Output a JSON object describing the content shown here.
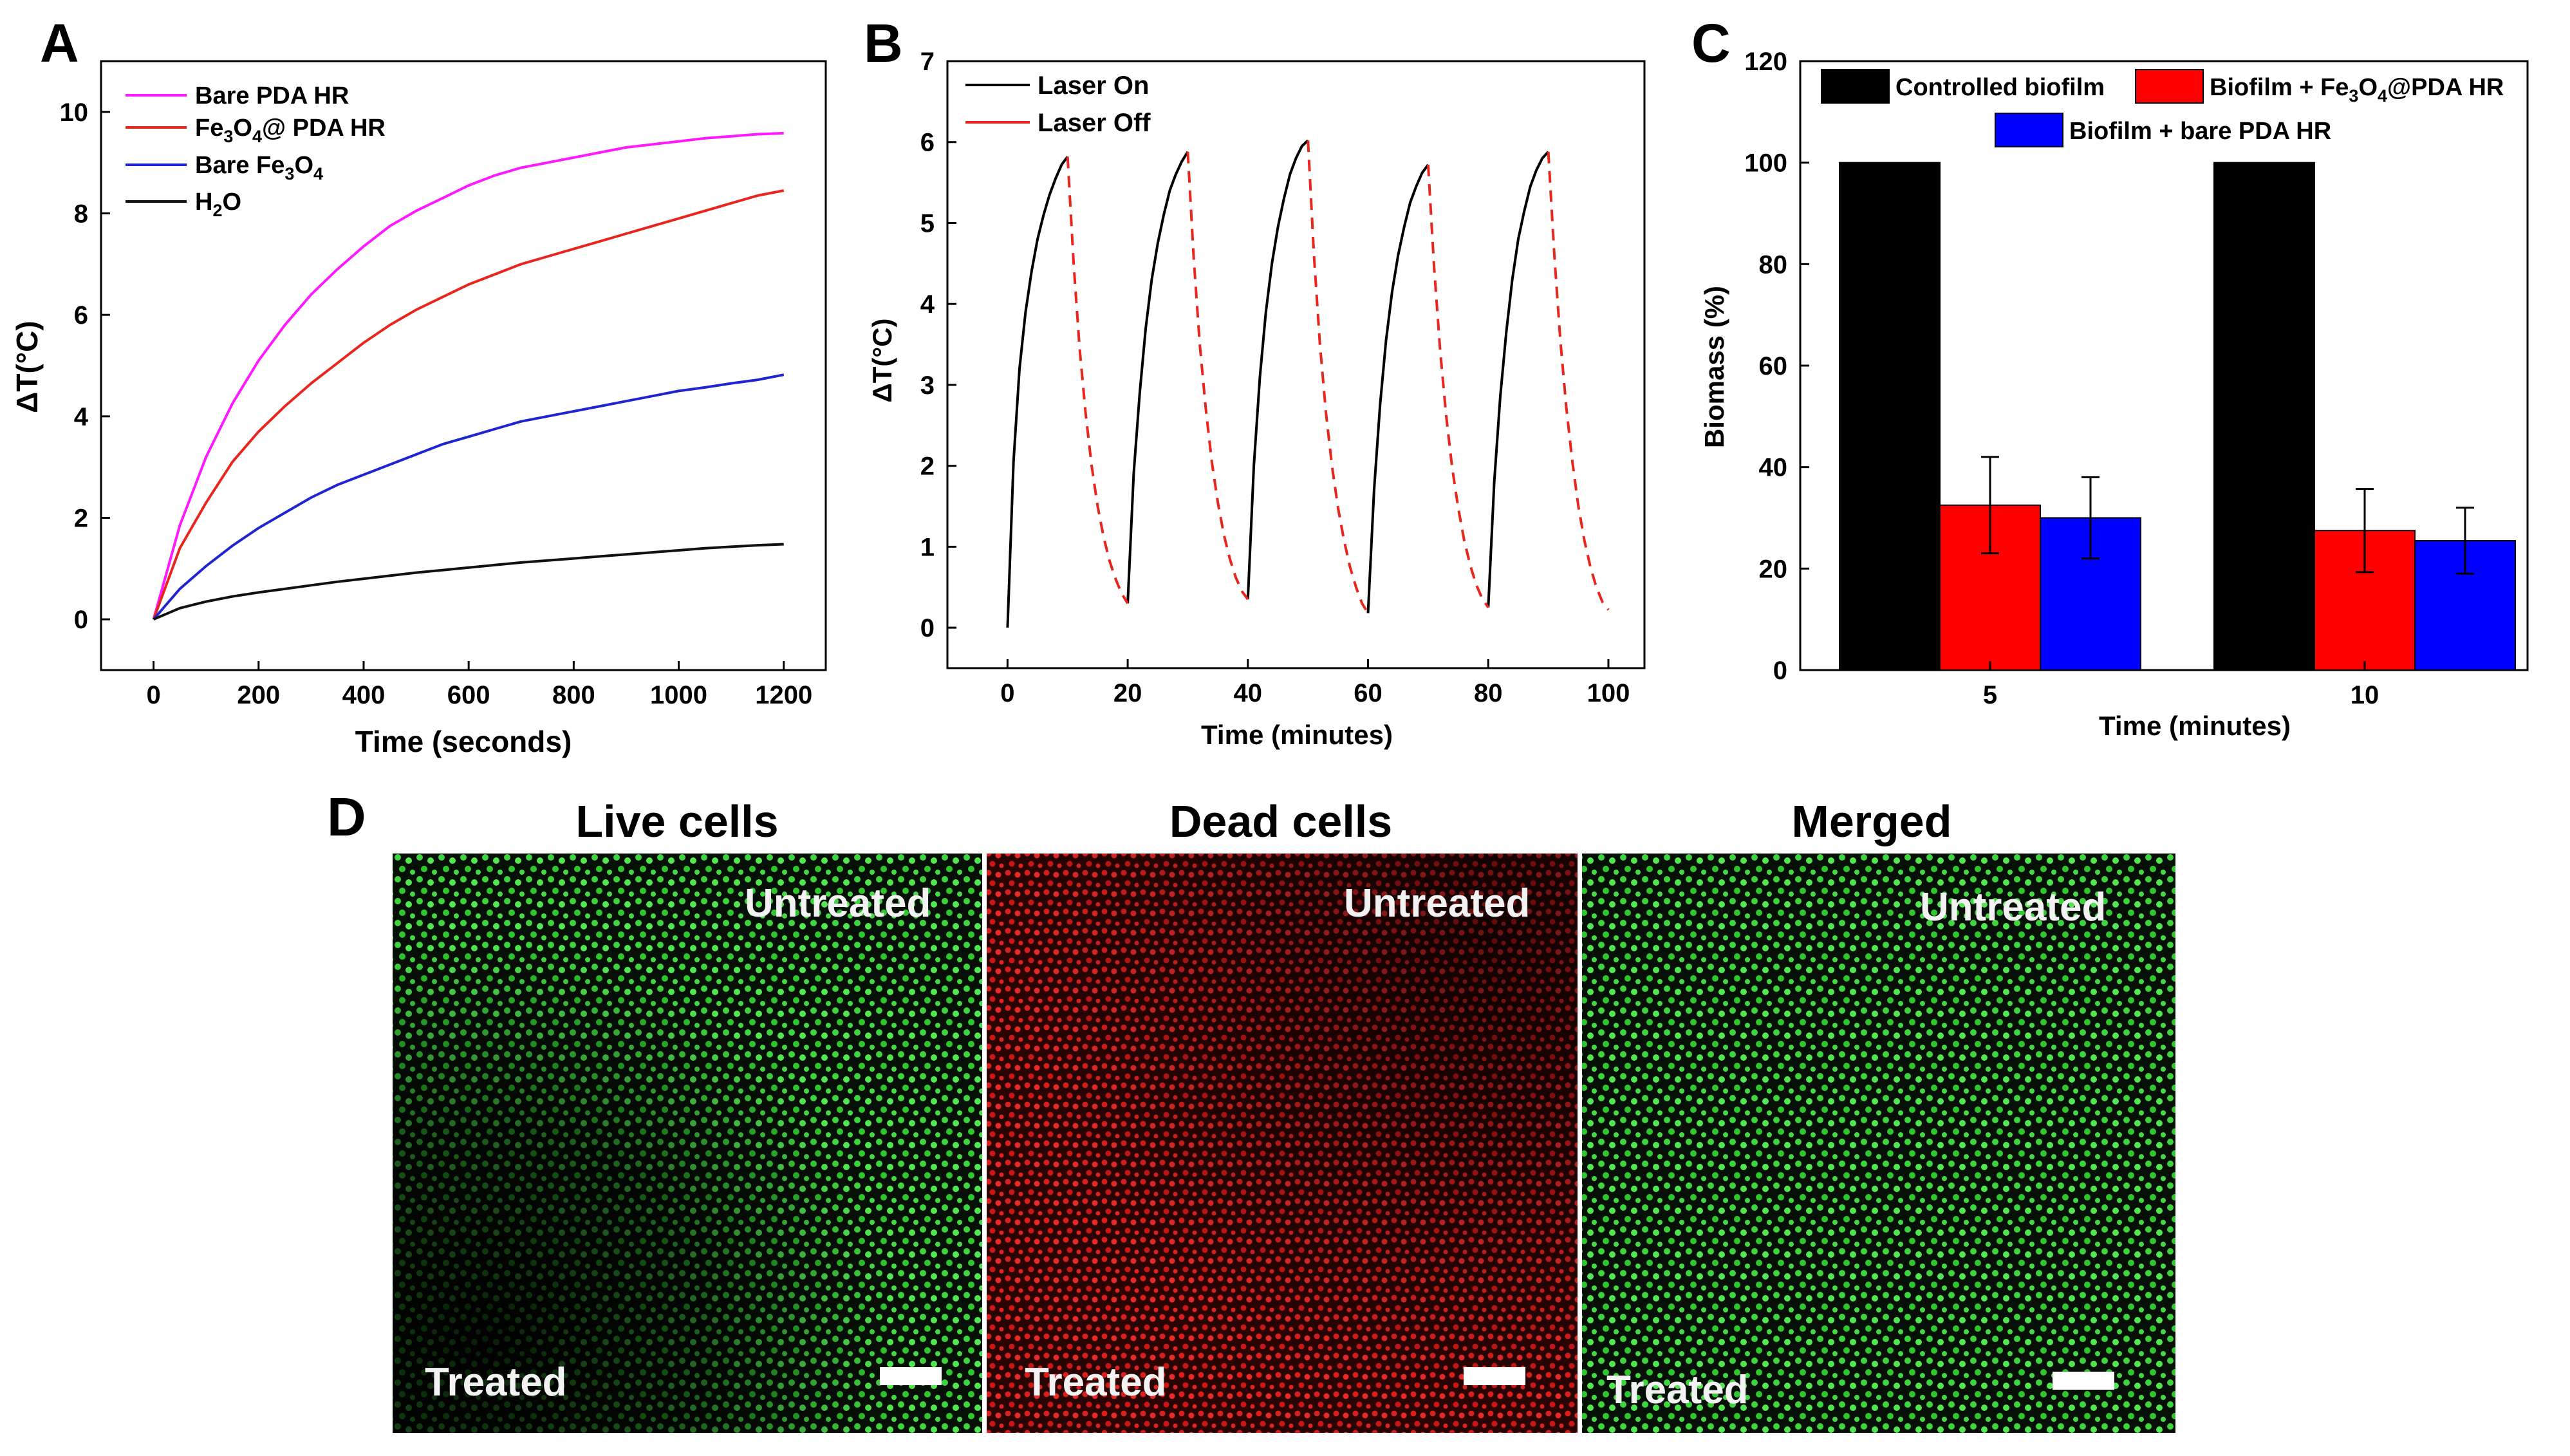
{
  "panels": {
    "a": "A",
    "b": "B",
    "c": "C",
    "d": "D"
  },
  "chart_data": [
    {
      "id": "A",
      "type": "line",
      "xlabel": "Time (seconds)",
      "ylabel": "ΔT(°C)",
      "xlim": [
        -100,
        1280
      ],
      "ylim": [
        -1,
        11
      ],
      "xticks": [
        0,
        200,
        400,
        600,
        800,
        1000,
        1200
      ],
      "yticks": [
        0,
        2,
        4,
        6,
        8,
        10
      ],
      "series": [
        {
          "name": "Bare PDA HR",
          "label_main": "Bare PDA HR",
          "color": "#ff19ff",
          "x": [
            0,
            50,
            100,
            150,
            200,
            250,
            300,
            350,
            400,
            450,
            500,
            550,
            600,
            650,
            700,
            750,
            800,
            850,
            900,
            950,
            1000,
            1050,
            1100,
            1150,
            1200
          ],
          "y": [
            0,
            1.85,
            3.2,
            4.25,
            5.1,
            5.8,
            6.4,
            6.9,
            7.35,
            7.75,
            8.05,
            8.3,
            8.55,
            8.75,
            8.9,
            9.0,
            9.1,
            9.2,
            9.3,
            9.36,
            9.42,
            9.48,
            9.52,
            9.56,
            9.58
          ]
        },
        {
          "name": "Fe3O4@ PDA HR",
          "label_main": "Fe",
          "label_sub1": "3",
          "label_mid": "O",
          "label_sub2": "4",
          "label_tail": "@ PDA HR",
          "color": "#e8261e",
          "x": [
            0,
            50,
            100,
            150,
            200,
            250,
            300,
            350,
            400,
            450,
            500,
            550,
            600,
            650,
            700,
            750,
            800,
            850,
            900,
            950,
            1000,
            1050,
            1100,
            1150,
            1200
          ],
          "y": [
            0,
            1.4,
            2.3,
            3.1,
            3.7,
            4.2,
            4.65,
            5.05,
            5.45,
            5.8,
            6.1,
            6.35,
            6.6,
            6.8,
            7.0,
            7.15,
            7.3,
            7.45,
            7.6,
            7.75,
            7.9,
            8.05,
            8.2,
            8.35,
            8.45
          ]
        },
        {
          "name": "Bare Fe3O4",
          "label_main": "Bare Fe",
          "label_sub1": "3",
          "label_mid": "O",
          "label_sub2": "4",
          "color": "#1f25d2",
          "x": [
            0,
            50,
            100,
            150,
            200,
            250,
            300,
            350,
            400,
            450,
            500,
            550,
            600,
            650,
            700,
            750,
            800,
            850,
            900,
            950,
            1000,
            1050,
            1100,
            1150,
            1200
          ],
          "y": [
            0,
            0.6,
            1.05,
            1.45,
            1.8,
            2.1,
            2.4,
            2.65,
            2.85,
            3.05,
            3.25,
            3.45,
            3.6,
            3.75,
            3.9,
            4.0,
            4.1,
            4.2,
            4.3,
            4.4,
            4.5,
            4.57,
            4.65,
            4.72,
            4.82
          ]
        },
        {
          "name": "H2O",
          "label_main": "H",
          "label_sub1": "2",
          "label_mid": "O",
          "color": "#111111",
          "x": [
            0,
            50,
            100,
            150,
            200,
            250,
            300,
            350,
            400,
            450,
            500,
            550,
            600,
            650,
            700,
            750,
            800,
            850,
            900,
            950,
            1000,
            1050,
            1100,
            1150,
            1200
          ],
          "y": [
            0,
            0.22,
            0.35,
            0.45,
            0.53,
            0.6,
            0.67,
            0.74,
            0.8,
            0.86,
            0.92,
            0.97,
            1.02,
            1.07,
            1.12,
            1.16,
            1.2,
            1.24,
            1.28,
            1.32,
            1.36,
            1.4,
            1.43,
            1.46,
            1.48
          ]
        }
      ]
    },
    {
      "id": "B",
      "type": "line",
      "xlabel": "Time (minutes)",
      "ylabel": "ΔT(°C)",
      "xlim": [
        -10,
        106
      ],
      "ylim": [
        -0.5,
        7
      ],
      "xticks": [
        0,
        20,
        40,
        60,
        80,
        100
      ],
      "yticks": [
        0,
        1,
        2,
        3,
        4,
        5,
        6,
        7
      ],
      "series": [
        {
          "name": "Laser On",
          "color": "#000000",
          "dash": "none",
          "segments": [
            {
              "x": [
                0,
                1,
                2,
                3,
                4,
                5,
                6,
                7,
                8,
                9,
                10
              ],
              "y": [
                0,
                2.05,
                3.2,
                3.9,
                4.4,
                4.8,
                5.1,
                5.35,
                5.55,
                5.72,
                5.82
              ]
            },
            {
              "x": [
                20,
                21,
                22,
                23,
                24,
                25,
                26,
                27,
                28,
                29,
                30
              ],
              "y": [
                0.3,
                1.9,
                2.9,
                3.7,
                4.3,
                4.75,
                5.1,
                5.4,
                5.6,
                5.76,
                5.88
              ]
            },
            {
              "x": [
                40,
                41,
                42,
                43,
                44,
                45,
                46,
                47,
                48,
                49,
                50
              ],
              "y": [
                0.35,
                2.0,
                3.1,
                3.9,
                4.5,
                4.95,
                5.3,
                5.6,
                5.8,
                5.95,
                6.02
              ]
            },
            {
              "x": [
                60,
                61,
                62,
                63,
                64,
                65,
                66,
                67,
                68,
                69,
                70
              ],
              "y": [
                0.18,
                1.7,
                2.75,
                3.55,
                4.15,
                4.6,
                4.95,
                5.25,
                5.45,
                5.62,
                5.72
              ]
            },
            {
              "x": [
                80,
                81,
                82,
                83,
                84,
                85,
                86,
                87,
                88,
                89,
                90
              ],
              "y": [
                0.25,
                1.8,
                2.85,
                3.65,
                4.3,
                4.8,
                5.15,
                5.45,
                5.65,
                5.8,
                5.88
              ]
            }
          ]
        },
        {
          "name": "Laser Off",
          "color": "#e8261e",
          "dash": "18,12",
          "segments": [
            {
              "x": [
                10,
                11,
                12,
                13,
                14,
                15,
                16,
                17,
                18,
                19,
                20
              ],
              "y": [
                5.82,
                4.5,
                3.45,
                2.65,
                2.0,
                1.5,
                1.12,
                0.82,
                0.6,
                0.42,
                0.3
              ]
            },
            {
              "x": [
                30,
                31,
                32,
                33,
                34,
                35,
                36,
                37,
                38,
                39,
                40
              ],
              "y": [
                5.88,
                4.55,
                3.5,
                2.7,
                2.05,
                1.55,
                1.15,
                0.85,
                0.62,
                0.45,
                0.35
              ]
            },
            {
              "x": [
                50,
                51,
                52,
                53,
                54,
                55,
                56,
                57,
                58,
                59,
                60
              ],
              "y": [
                6.02,
                4.6,
                3.5,
                2.65,
                2.0,
                1.48,
                1.08,
                0.75,
                0.5,
                0.3,
                0.18
              ]
            },
            {
              "x": [
                70,
                71,
                72,
                73,
                74,
                75,
                76,
                77,
                78,
                79,
                80
              ],
              "y": [
                5.72,
                4.45,
                3.42,
                2.62,
                1.98,
                1.48,
                1.08,
                0.77,
                0.53,
                0.36,
                0.25
              ]
            },
            {
              "x": [
                90,
                91,
                92,
                93,
                94,
                95,
                96,
                97,
                98,
                99,
                100
              ],
              "y": [
                5.88,
                4.6,
                3.55,
                2.72,
                2.05,
                1.5,
                1.08,
                0.75,
                0.5,
                0.32,
                0.22
              ]
            }
          ]
        }
      ]
    },
    {
      "id": "C",
      "type": "bar",
      "xlabel": "Time (minutes)",
      "ylabel": "Biomass (%)",
      "ylim": [
        0,
        120
      ],
      "yticks": [
        0,
        20,
        40,
        60,
        80,
        100,
        120
      ],
      "categories": [
        "5",
        "10"
      ],
      "series": [
        {
          "name": "Controlled biofilm",
          "label_main": "Controlled biofilm",
          "color": "#000000",
          "values": [
            100,
            100
          ],
          "errors": [
            0,
            0
          ]
        },
        {
          "name": "Biofilm + Fe3O4@PDA HR",
          "label_main": "Biofilm + Fe",
          "label_sub1": "3",
          "label_mid": "O",
          "label_sub2": "4",
          "label_tail": "@PDA HR",
          "color": "#ff0000",
          "values": [
            32.5,
            27.5
          ],
          "errors": [
            9.5,
            8.2
          ]
        },
        {
          "name": "Biofilm + bare PDA HR",
          "label_main": "Biofilm + bare PDA HR",
          "color": "#0000ff",
          "values": [
            30,
            25.5
          ],
          "errors": [
            8,
            6.5
          ]
        }
      ]
    }
  ],
  "microscopy": {
    "titles": [
      "Live cells",
      "Dead cells",
      "Merged"
    ],
    "untreated_label": "Untreated",
    "treated_label": "Treated"
  }
}
